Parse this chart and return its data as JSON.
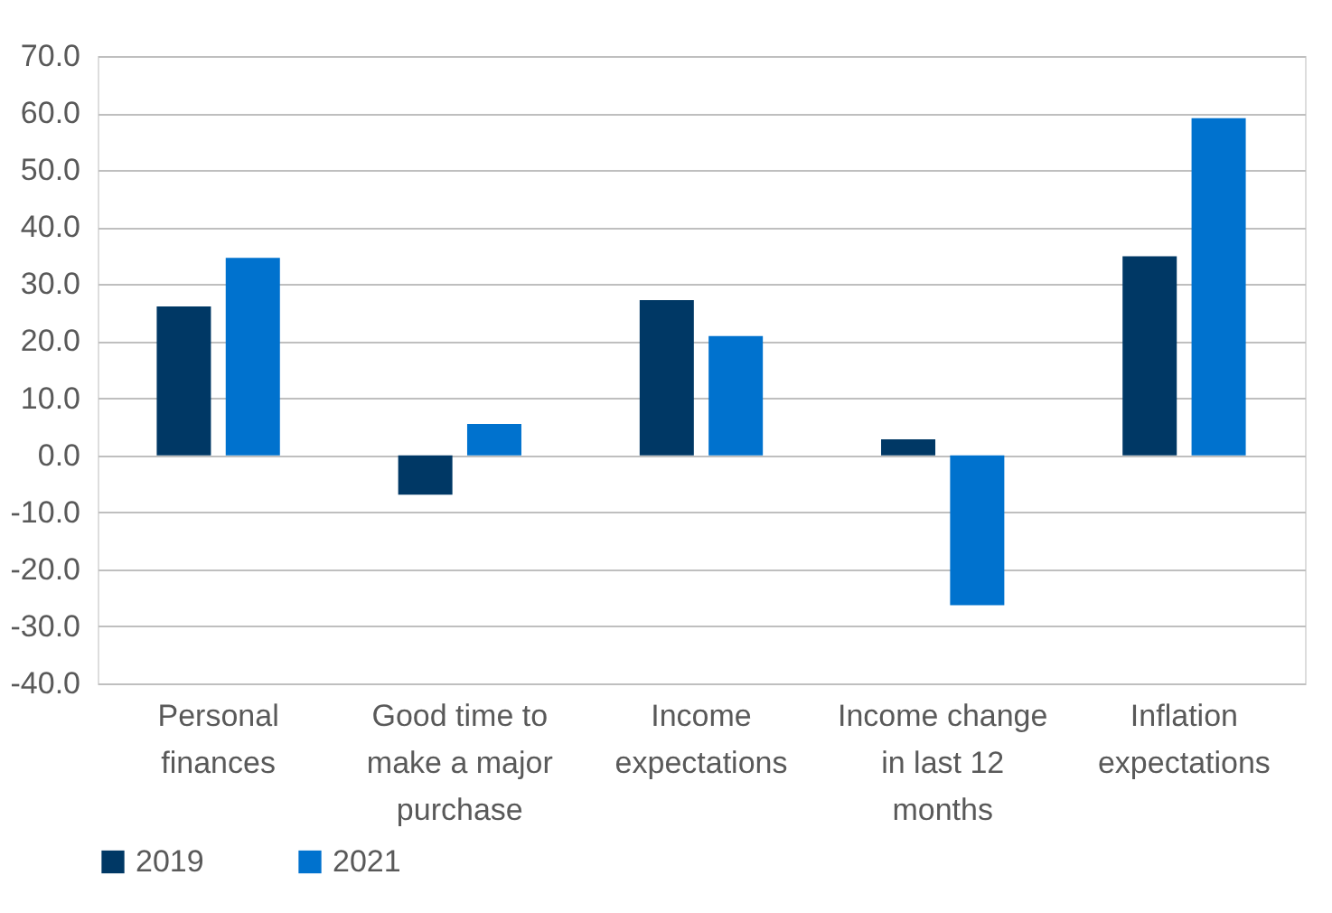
{
  "chart_data": {
    "type": "bar",
    "categories": [
      "Personal finances",
      "Good time to make a major purchase",
      "Income expectations",
      "Income change in last 12 months",
      "Inflation expectations"
    ],
    "series": [
      {
        "name": "2019",
        "color": "#003865",
        "values": [
          26.1,
          -6.9,
          27.2,
          2.8,
          34.9
        ]
      },
      {
        "name": "2021",
        "color": "#0072ce",
        "values": [
          34.6,
          5.5,
          20.9,
          -26.3,
          59.1
        ]
      }
    ],
    "ylim": [
      -40,
      70
    ],
    "yticks": [
      {
        "value": -40,
        "label": "-40.0"
      },
      {
        "value": -30,
        "label": "-30.0"
      },
      {
        "value": -20,
        "label": "-20.0"
      },
      {
        "value": -10,
        "label": "-10.0"
      },
      {
        "value": 0,
        "label": "0.0"
      },
      {
        "value": 10,
        "label": "10.0"
      },
      {
        "value": 20,
        "label": "20.0"
      },
      {
        "value": 30,
        "label": "30.0"
      },
      {
        "value": 40,
        "label": "40.0"
      },
      {
        "value": 50,
        "label": "50.0"
      },
      {
        "value": 60,
        "label": "60.0"
      },
      {
        "value": 70,
        "label": "70.0"
      }
    ],
    "grid": "y",
    "legend": "bottom left"
  }
}
